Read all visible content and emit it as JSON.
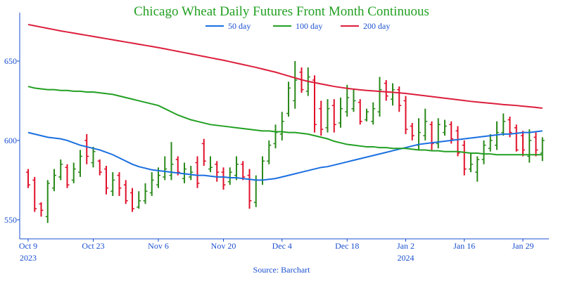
{
  "chart_data": {
    "type": "ohlc",
    "title": "Chicago Wheat Daily Futures Front Month Continuous",
    "source": "Source: Barchart",
    "legend": "top",
    "up_color": "#2a8a1a",
    "down_color": "#e0102a",
    "ylim": [
      538,
      680.5
    ],
    "yticks": [
      550,
      600,
      650
    ],
    "categories": [
      "Oct 9\n2023",
      null,
      null,
      null,
      null,
      null,
      null,
      null,
      null,
      null,
      "Oct 23",
      null,
      null,
      null,
      null,
      null,
      null,
      null,
      null,
      null,
      "Nov 6",
      null,
      null,
      null,
      null,
      null,
      null,
      null,
      null,
      null,
      "Nov 20",
      null,
      null,
      null,
      null,
      null,
      null,
      null,
      null,
      "Dec 4",
      null,
      null,
      null,
      null,
      null,
      null,
      null,
      null,
      null,
      "Dec 18",
      null,
      null,
      null,
      null,
      null,
      null,
      null,
      null,
      "Jan 2\n2024",
      null,
      null,
      null,
      null,
      null,
      null,
      null,
      null,
      "Jan 16",
      null,
      null,
      null,
      null,
      null,
      null,
      null,
      null,
      "Jan 29",
      null,
      null,
      null
    ],
    "open": [
      580,
      575,
      560,
      552,
      570,
      577,
      583,
      575,
      580,
      600,
      586,
      587,
      582,
      568,
      578,
      572,
      567,
      558,
      562,
      567,
      572,
      577,
      578,
      588,
      576,
      577,
      586,
      598,
      582,
      585,
      580,
      574,
      578,
      585,
      578,
      561,
      575,
      587,
      598,
      604,
      617,
      625,
      643,
      631,
      638,
      620,
      608,
      622,
      611,
      618,
      620,
      624,
      613,
      612,
      618,
      636,
      626,
      632,
      625,
      609,
      597,
      603,
      610,
      598,
      605,
      610,
      606,
      597,
      582,
      580,
      588,
      595,
      597,
      605,
      613,
      608,
      603,
      590,
      602,
      592
    ],
    "high": [
      582,
      577,
      561,
      575,
      582,
      588,
      585,
      586,
      594,
      604,
      596,
      588,
      584,
      580,
      580,
      575,
      570,
      568,
      573,
      580,
      583,
      590,
      599,
      590,
      586,
      584,
      590,
      601,
      590,
      587,
      583,
      583,
      590,
      587,
      582,
      578,
      590,
      600,
      610,
      618,
      637,
      650,
      646,
      646,
      641,
      625,
      626,
      626,
      627,
      635,
      632,
      626,
      620,
      624,
      640,
      638,
      636,
      634,
      628,
      611,
      614,
      620,
      612,
      614,
      613,
      612,
      609,
      600,
      592,
      590,
      600,
      604,
      612,
      617,
      615,
      610,
      606,
      607,
      605,
      602
    ],
    "low": [
      570,
      555,
      552,
      548,
      568,
      575,
      570,
      573,
      577,
      585,
      583,
      578,
      566,
      565,
      565,
      560,
      555,
      557,
      560,
      565,
      570,
      575,
      575,
      578,
      573,
      575,
      570,
      584,
      580,
      574,
      569,
      572,
      575,
      575,
      557,
      558,
      572,
      585,
      595,
      600,
      615,
      620,
      630,
      628,
      605,
      603,
      605,
      605,
      608,
      615,
      618,
      610,
      612,
      610,
      615,
      625,
      622,
      618,
      604,
      600,
      594,
      600,
      594,
      595,
      603,
      598,
      590,
      578,
      580,
      574,
      585,
      593,
      594,
      603,
      602,
      593,
      590,
      586,
      590,
      587
    ],
    "close": [
      572,
      557,
      556,
      573,
      578,
      585,
      572,
      582,
      590,
      590,
      593,
      580,
      570,
      575,
      570,
      562,
      557,
      562,
      568,
      575,
      578,
      582,
      585,
      580,
      582,
      580,
      573,
      587,
      583,
      580,
      572,
      580,
      585,
      577,
      562,
      575,
      587,
      597,
      605,
      612,
      633,
      638,
      632,
      640,
      610,
      607,
      620,
      610,
      620,
      627,
      625,
      612,
      618,
      620,
      632,
      628,
      632,
      622,
      607,
      603,
      605,
      612,
      598,
      610,
      609,
      601,
      592,
      582,
      585,
      588,
      597,
      600,
      605,
      612,
      605,
      594,
      594,
      600,
      594,
      600
    ],
    "series": [
      {
        "name": "50 day",
        "color": "#1a6fe0",
        "values": [
          605,
          604,
          603,
          602,
          601.5,
          601,
          600,
          598.5,
          597,
          596,
          595,
          594,
          592.5,
          591,
          589,
          587,
          585,
          583.5,
          582.5,
          581.5,
          581,
          580.5,
          580,
          579.5,
          579,
          578.5,
          578,
          578,
          577.5,
          577,
          577,
          576.5,
          576.5,
          576,
          575.5,
          575,
          575,
          575.5,
          576,
          577,
          578,
          579,
          580,
          581,
          582,
          583,
          583.5,
          584.5,
          585.5,
          586.5,
          587.5,
          588.5,
          589.5,
          590.5,
          591.5,
          592.5,
          593.5,
          594.5,
          595.5,
          596.5,
          597.5,
          598,
          598.5,
          599,
          599.5,
          600,
          600.5,
          601,
          601.5,
          602,
          602.5,
          603,
          603.5,
          604,
          604,
          604.5,
          605,
          605,
          605.5,
          606
        ]
      },
      {
        "name": "100 day",
        "color": "#22a022",
        "values": [
          634,
          633,
          632.5,
          632,
          632,
          631.5,
          631.5,
          631,
          631,
          630.5,
          630.5,
          630,
          629.5,
          629,
          628,
          627,
          626,
          625,
          624,
          623,
          622,
          620,
          618,
          616,
          614.5,
          613,
          612,
          611,
          610,
          609.5,
          609,
          608.5,
          608,
          607.5,
          607,
          606.5,
          606,
          606,
          605.5,
          605.5,
          605,
          605,
          604.5,
          604,
          603,
          602,
          601,
          599.5,
          598.5,
          597.5,
          597,
          596.5,
          596,
          596,
          595.5,
          595.5,
          595,
          595,
          595,
          594.5,
          594,
          594,
          593.5,
          593.5,
          593,
          593,
          593,
          592.5,
          592,
          592,
          591.5,
          591.5,
          591,
          591,
          591,
          591,
          591,
          591,
          591,
          591
        ]
      },
      {
        "name": "200 day",
        "color": "#dc1e3c",
        "values": [
          673,
          672.2,
          671.4,
          670.6,
          669.8,
          669,
          668.3,
          667.6,
          666.9,
          666.2,
          665.5,
          664.8,
          664.1,
          663.4,
          662.7,
          662,
          661.3,
          660.6,
          659.9,
          659.2,
          658.5,
          657.7,
          656.9,
          656.1,
          655.3,
          654.5,
          653.7,
          652.9,
          652.1,
          651.3,
          650.5,
          649.6,
          648.7,
          647.8,
          646.9,
          646,
          645,
          644,
          643,
          641.8,
          640.6,
          639.4,
          638.2,
          637.2,
          636.4,
          635.6,
          634.8,
          634,
          633.4,
          632.8,
          632.3,
          631.9,
          631.5,
          631.2,
          630.9,
          630.6,
          630.3,
          630,
          629.6,
          629.1,
          628.6,
          628.1,
          627.6,
          627.1,
          626.6,
          626.1,
          625.6,
          625.1,
          624.6,
          624.2,
          623.8,
          623.4,
          623,
          622.6,
          622.3,
          622,
          621.6,
          621.2,
          620.8,
          620.3
        ]
      }
    ]
  }
}
